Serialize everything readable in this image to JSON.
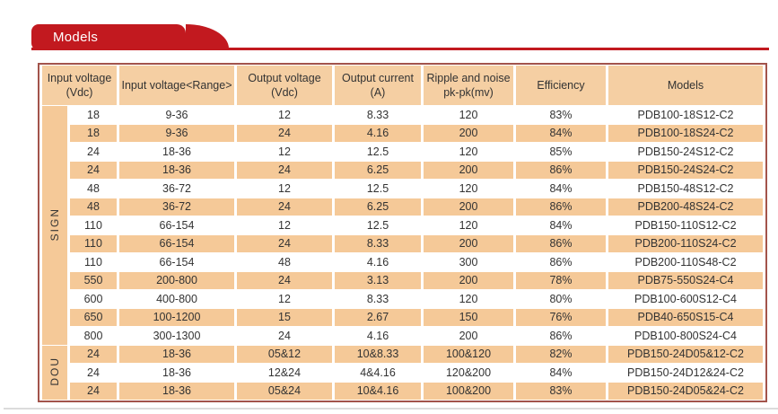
{
  "banner": {
    "label": "Models"
  },
  "colors": {
    "accent_red": "#C2191F",
    "table_border": "#A3544B",
    "row_orange": "#F5C998",
    "header_orange": "#F5CFA3"
  },
  "table": {
    "headers": [
      "Input voltage\n(Vdc)",
      "Input voltage<Range>",
      "Output voltage\n(Vdc)",
      "Output current\n(A)",
      "Ripple and noise\npk-pk(mv)",
      "Efficiency",
      "Models"
    ],
    "groups": [
      {
        "label": "SIGN",
        "rows": [
          [
            "18",
            "9-36",
            "12",
            "8.33",
            "120",
            "83%",
            "PDB100-18S12-C2"
          ],
          [
            "18",
            "9-36",
            "24",
            "4.16",
            "200",
            "84%",
            "PDB100-18S24-C2"
          ],
          [
            "24",
            "18-36",
            "12",
            "12.5",
            "120",
            "85%",
            "PDB150-24S12-C2"
          ],
          [
            "24",
            "18-36",
            "24",
            "6.25",
            "200",
            "86%",
            "PDB150-24S24-C2"
          ],
          [
            "48",
            "36-72",
            "12",
            "12.5",
            "120",
            "84%",
            "PDB150-48S12-C2"
          ],
          [
            "48",
            "36-72",
            "24",
            "6.25",
            "200",
            "86%",
            "PDB200-48S24-C2"
          ],
          [
            "110",
            "66-154",
            "12",
            "12.5",
            "120",
            "84%",
            "PDB150-110S12-C2"
          ],
          [
            "110",
            "66-154",
            "24",
            "8.33",
            "200",
            "86%",
            "PDB200-110S24-C2"
          ],
          [
            "110",
            "66-154",
            "48",
            "4.16",
            "300",
            "86%",
            "PDB200-110S48-C2"
          ],
          [
            "550",
            "200-800",
            "24",
            "3.13",
            "200",
            "78%",
            "PDB75-550S24-C4"
          ],
          [
            "600",
            "400-800",
            "12",
            "8.33",
            "120",
            "80%",
            "PDB100-600S12-C4"
          ],
          [
            "650",
            "100-1200",
            "15",
            "2.67",
            "150",
            "76%",
            "PDB40-650S15-C4"
          ],
          [
            "800",
            "300-1300",
            "24",
            "4.16",
            "200",
            "86%",
            "PDB100-800S24-C4"
          ]
        ]
      },
      {
        "label": "DOU",
        "rows": [
          [
            "24",
            "18-36",
            "05&12",
            "10&8.33",
            "100&120",
            "82%",
            "PDB150-24D05&12-C2"
          ],
          [
            "24",
            "18-36",
            "12&24",
            "4&4.16",
            "120&200",
            "84%",
            "PDB150-24D12&24-C2"
          ],
          [
            "24",
            "18-36",
            "05&24",
            "10&4.16",
            "100&200",
            "83%",
            "PDB150-24D05&24-C2"
          ]
        ]
      }
    ]
  }
}
